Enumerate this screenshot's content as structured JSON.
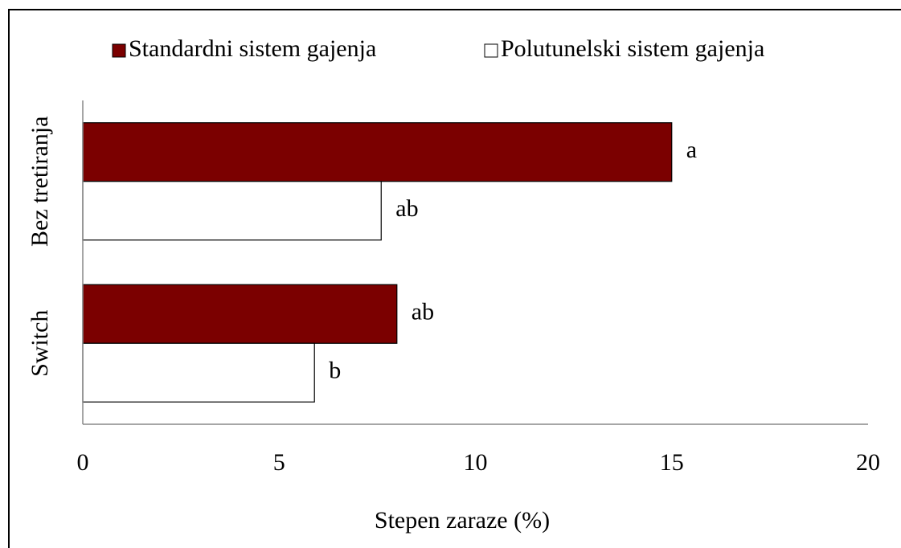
{
  "chart_data": {
    "type": "hbar",
    "categories": [
      "Bez tretiranja",
      "Switch"
    ],
    "series": [
      {
        "name": "Standardni sistem gajenja",
        "color": "#7b0000",
        "values": [
          15.0,
          8.0
        ],
        "annotations": [
          "a",
          "ab"
        ]
      },
      {
        "name": "Polutunelski sistem gajenja",
        "color": "#ffffff",
        "values": [
          7.6,
          5.9
        ],
        "annotations": [
          "ab",
          "b"
        ]
      }
    ],
    "xlabel": "Stepen zaraze (%)",
    "xlim": [
      0,
      20
    ],
    "xticks": [
      0,
      5,
      10,
      15,
      20
    ],
    "grid": false,
    "legend": "top"
  }
}
